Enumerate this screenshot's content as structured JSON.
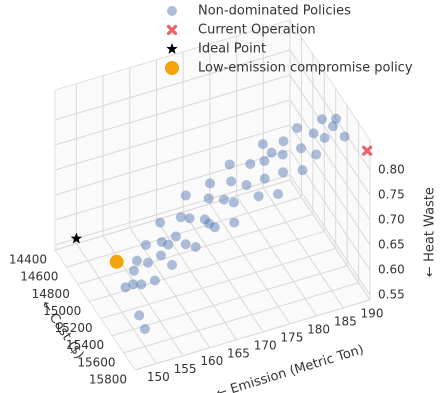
{
  "chart_data": {
    "type": "scatter3d",
    "xlabel": "← Cost ($)",
    "ylabel": "← Emission (Metric Ton)",
    "zlabel": "← Heat Waste",
    "xlim": [
      14400,
      15800
    ],
    "xticks": [
      14400,
      14600,
      14800,
      15000,
      15200,
      15400,
      15600,
      15800
    ],
    "ylim": [
      146,
      190
    ],
    "yticks": [
      150,
      155,
      160,
      165,
      170,
      175,
      180,
      185,
      190
    ],
    "zlim": [
      0.54,
      0.86
    ],
    "zticks": [
      0.55,
      {
        "value": 0.6,
        "label": "0.60"
      },
      0.65,
      {
        "value": 0.7,
        "label": "0.70"
      },
      0.75,
      {
        "value": 0.8,
        "label": "0.80"
      }
    ],
    "grid": true,
    "legend": "top",
    "series": [
      {
        "name": "Non-dominated Policies",
        "color": "#4c72b0",
        "marker": "o",
        "x": [
          15260,
          15300,
          15220,
          15350,
          15180,
          15280,
          15400,
          15150,
          15320,
          15240,
          15420,
          15120,
          15300,
          15380,
          15200,
          15460,
          15260,
          15100,
          15340,
          15420,
          15220,
          15150,
          15300,
          15480,
          15380,
          15240,
          15120,
          15320,
          15440,
          15200,
          15360,
          15260,
          15500,
          15140,
          15400,
          15300,
          15220,
          15460,
          15340,
          15180,
          15420,
          15280,
          15380,
          15240,
          15340,
          15300,
          15450,
          15200,
          15320,
          15260,
          15500,
          15600
        ],
        "y": [
          150,
          151,
          152,
          152,
          153,
          154,
          154,
          155,
          156,
          157,
          157,
          158,
          159,
          160,
          161,
          161,
          162,
          163,
          164,
          165,
          166,
          167,
          168,
          168,
          169,
          170,
          171,
          172,
          173,
          174,
          175,
          176,
          176,
          177,
          178,
          179,
          180,
          181,
          182,
          183,
          184,
          185,
          186,
          187,
          188,
          189,
          189,
          178,
          165,
          158,
          150,
          150
        ],
        "z": [
          0.6,
          0.61,
          0.62,
          0.615,
          0.63,
          0.64,
          0.625,
          0.65,
          0.655,
          0.665,
          0.65,
          0.68,
          0.68,
          0.675,
          0.695,
          0.68,
          0.7,
          0.715,
          0.705,
          0.7,
          0.72,
          0.735,
          0.725,
          0.71,
          0.73,
          0.745,
          0.755,
          0.745,
          0.74,
          0.76,
          0.755,
          0.77,
          0.745,
          0.78,
          0.765,
          0.78,
          0.79,
          0.77,
          0.79,
          0.8,
          0.785,
          0.8,
          0.805,
          0.815,
          0.815,
          0.82,
          0.81,
          0.77,
          0.69,
          0.66,
          0.585,
          0.575
        ]
      },
      {
        "name": "Current Operation",
        "color": "#e8474f",
        "marker": "X",
        "x": [
          15750
        ],
        "y": [
          190
        ],
        "z": [
          0.83
        ]
      },
      {
        "name": "Ideal Point",
        "color": "#000000",
        "marker": "*",
        "x": [
          14400
        ],
        "y": [
          150
        ],
        "z": [
          0.55
        ]
      },
      {
        "name": "Low-emission compromise policy",
        "color": "#f5a30a",
        "marker": "O",
        "x": [
          15200
        ],
        "y": [
          149
        ],
        "z": [
          0.644
        ]
      }
    ]
  }
}
